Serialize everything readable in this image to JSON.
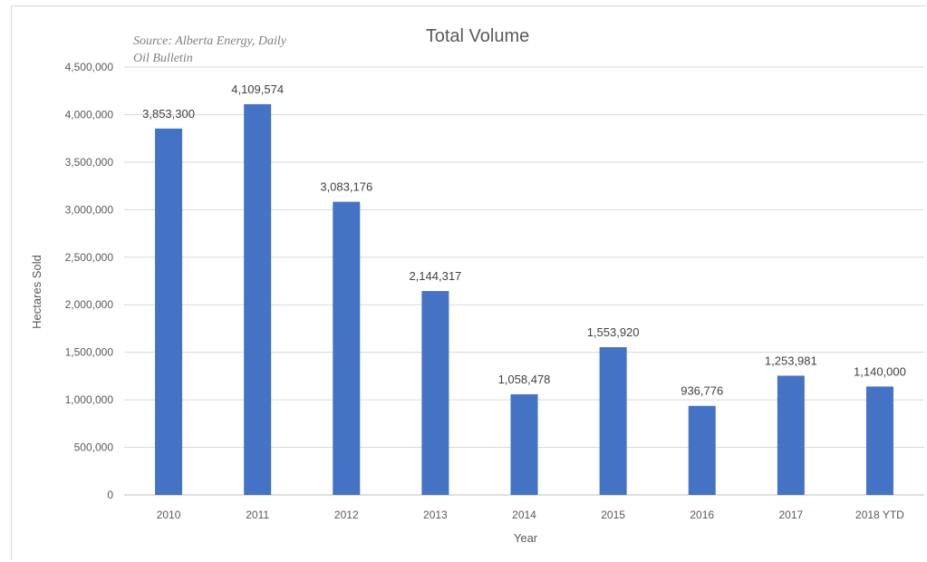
{
  "chart_data": {
    "type": "bar",
    "title": "Total Volume",
    "source_note": [
      "Source: Alberta Energy, Daily",
      "Oil Bulletin"
    ],
    "xlabel": "Year",
    "ylabel": "Hectares Sold",
    "categories": [
      "2010",
      "2011",
      "2012",
      "2013",
      "2014",
      "2015",
      "2016",
      "2017",
      "2018 YTD"
    ],
    "values": [
      3853300,
      4109574,
      3083176,
      2144317,
      1058478,
      1553920,
      936776,
      1253981,
      1140000
    ],
    "data_labels": [
      "3,853,300",
      "4,109,574",
      "3,083,176",
      "2,144,317",
      "1,058,478",
      "1,553,920",
      "936,776",
      "1,253,981",
      "1,140,000"
    ],
    "ylim": [
      0,
      4500000
    ],
    "yticks": [
      0,
      500000,
      1000000,
      1500000,
      2000000,
      2500000,
      3000000,
      3500000,
      4000000,
      4500000
    ],
    "ytick_labels": [
      "0",
      "500,000",
      "1,000,000",
      "1,500,000",
      "2,000,000",
      "2,500,000",
      "3,000,000",
      "3,500,000",
      "4,000,000",
      "4,500,000"
    ],
    "grid": true,
    "legend": "none",
    "bar_color": "#4472c4",
    "grid_color": "#d9d9d9"
  }
}
